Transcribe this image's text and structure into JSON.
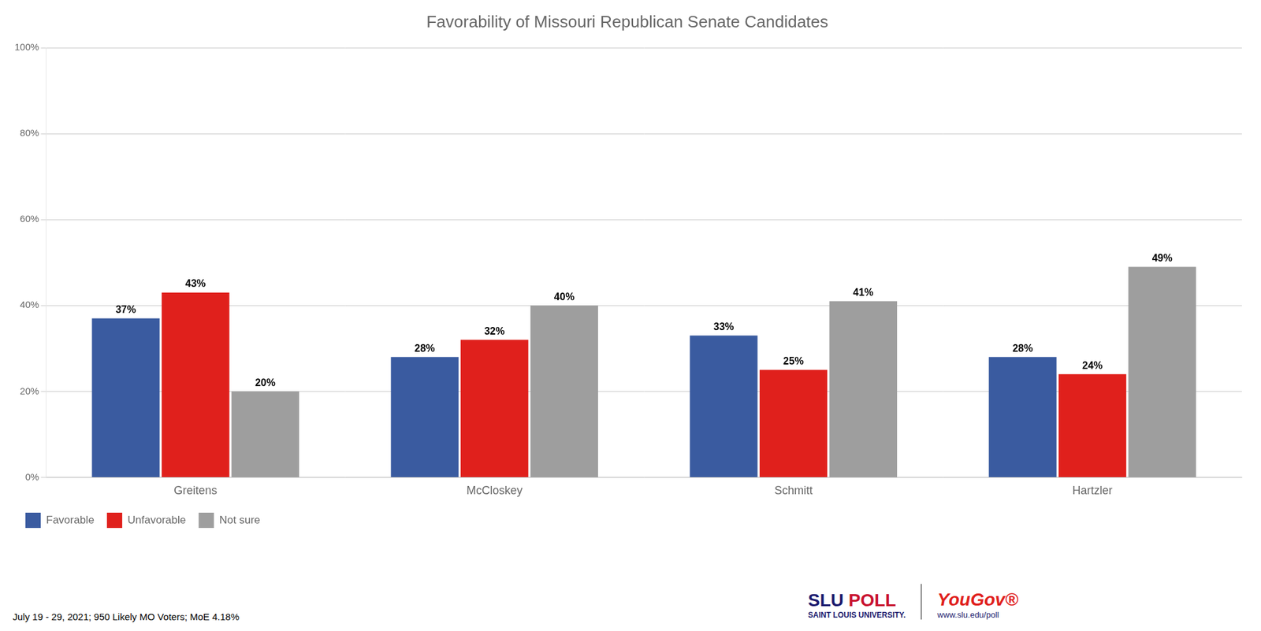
{
  "chart_data": {
    "type": "bar",
    "title": "Favorability of Missouri Republican Senate Candidates",
    "categories": [
      "Greitens",
      "McCloskey",
      "Schmitt",
      "Hartzler"
    ],
    "series": [
      {
        "name": "Favorable",
        "color": "#3A5BA0",
        "values": [
          37,
          28,
          33,
          28
        ],
        "value_labels": [
          "37%",
          "28%",
          "33%",
          "28%"
        ]
      },
      {
        "name": "Unfavorable",
        "color": "#E0201C",
        "values": [
          43,
          32,
          25,
          24
        ],
        "value_labels": [
          "43%",
          "32%",
          "25%",
          "24%"
        ]
      },
      {
        "name": "Not sure",
        "color": "#9E9E9E",
        "values": [
          20,
          40,
          41,
          49
        ],
        "value_labels": [
          "20%",
          "40%",
          "41%",
          "49%"
        ]
      }
    ],
    "ylim": [
      0,
      100
    ],
    "yticks": [
      {
        "value": 0,
        "label": "0%"
      },
      {
        "value": 20,
        "label": "20%"
      },
      {
        "value": 40,
        "label": "40%"
      },
      {
        "value": 60,
        "label": "60%"
      },
      {
        "value": 80,
        "label": "80%"
      },
      {
        "value": 100,
        "label": "100%"
      }
    ],
    "grid": true,
    "legend": "bottom-left",
    "data_labels": true,
    "annotations": [
      "July 19 - 29, 2021; 950 Likely MO Voters; MoE 4.18%",
      "SLU POLL",
      "SAINT LOUIS UNIVERSITY.",
      "YouGov®",
      "www.slu.edu/poll"
    ]
  }
}
